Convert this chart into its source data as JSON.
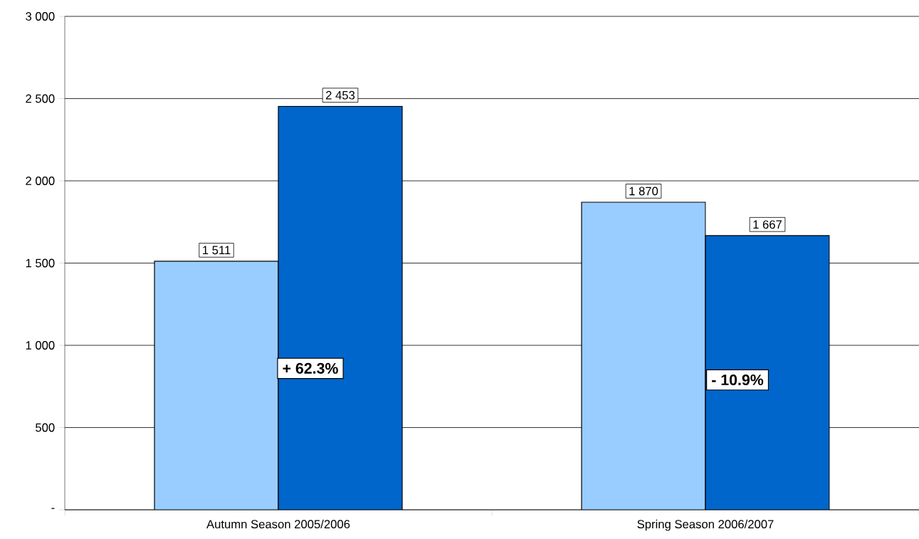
{
  "chart_data": {
    "type": "bar",
    "categories": [
      "Autumn Season 2005/2006",
      "Spring Season 2006/2007"
    ],
    "series": [
      {
        "color": "#99ccff",
        "values": [
          1511,
          1870
        ],
        "value_labels": [
          "1 511",
          "1 870"
        ]
      },
      {
        "color": "#0066cc",
        "values": [
          2453,
          1667
        ],
        "value_labels": [
          "2 453",
          "1 667"
        ]
      }
    ],
    "ylim": [
      0,
      3000
    ],
    "yticks": [
      {
        "value": 0,
        "label": "-"
      },
      500,
      {
        "value": 1000,
        "label": "1 000"
      },
      {
        "value": 1500,
        "label": "1 500"
      },
      {
        "value": 2000,
        "label": "2 000"
      },
      {
        "value": 2500,
        "label": "2 500"
      },
      {
        "value": 3000,
        "label": "3 000"
      }
    ],
    "grid": "y",
    "annotations": [
      {
        "text": "+ 62.3%",
        "x": "Autumn Season 2005/2006",
        "y": 860
      },
      {
        "text": "- 10.9%",
        "x": "Spring Season 2006/2007",
        "y": 790
      }
    ]
  }
}
